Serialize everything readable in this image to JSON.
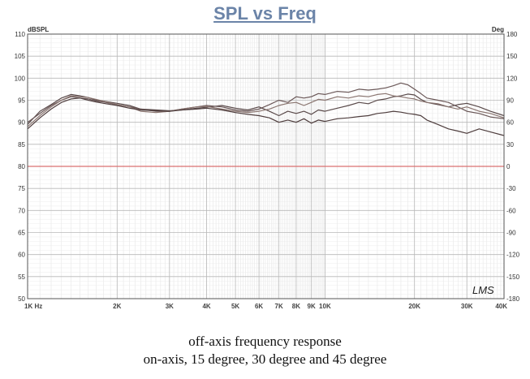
{
  "chart_data": {
    "type": "line",
    "title": "SPL vs Freq",
    "y_left_unit": "dBSPL",
    "y_right_unit": "Deg",
    "xscale": "log",
    "xlim": [
      1000,
      40000
    ],
    "ylim": [
      50,
      110
    ],
    "y_right_lim": [
      -180,
      180
    ],
    "x_ticks": [
      {
        "value": 1000,
        "label": "1K Hz"
      },
      {
        "value": 2000,
        "label": "2K"
      },
      {
        "value": 3000,
        "label": "3K"
      },
      {
        "value": 4000,
        "label": "4K"
      },
      {
        "value": 5000,
        "label": "5K"
      },
      {
        "value": 6000,
        "label": "6K"
      },
      {
        "value": 7000,
        "label": "7K"
      },
      {
        "value": 8000,
        "label": "8K"
      },
      {
        "value": 9000,
        "label": "9K"
      },
      {
        "value": 10000,
        "label": "10K"
      },
      {
        "value": 20000,
        "label": "20K"
      },
      {
        "value": 30000,
        "label": "30K"
      },
      {
        "value": 40000,
        "label": "40K"
      }
    ],
    "y_left_ticks": [
      "110",
      "105",
      "100",
      "95",
      "90",
      "85",
      "80",
      "75",
      "70",
      "65",
      "60",
      "55",
      "50"
    ],
    "y_right_ticks": [
      "180",
      "150",
      "120",
      "90",
      "60",
      "30",
      "0",
      "-30",
      "-60",
      "-90",
      "-120",
      "-150",
      "-180"
    ],
    "grid": true,
    "reference_line": 80,
    "watermark": "LMS",
    "series": [
      {
        "color": "#5a4a4a",
        "x": [
          1000,
          1100,
          1200,
          1300,
          1400,
          1500,
          1600,
          1700,
          1800,
          2000,
          2200,
          2400,
          2700,
          3000,
          3300,
          3700,
          4000,
          4500,
          5000,
          5500,
          6000,
          6500,
          7000,
          7500,
          8000,
          8500,
          9000,
          9500,
          10000,
          11000,
          12000,
          13000,
          14000,
          15000,
          16000,
          17000,
          18000,
          19000,
          20000,
          21000,
          22000,
          24000,
          26000,
          28000,
          30000,
          33000,
          36000,
          40000
        ],
        "y": [
          89.5,
          92.5,
          94.0,
          95.5,
          96.3,
          96.0,
          95.6,
          95.0,
          94.8,
          94.3,
          93.8,
          93.0,
          92.8,
          92.6,
          92.8,
          93.2,
          93.4,
          93.8,
          93.2,
          92.8,
          93.5,
          92.5,
          91.5,
          92.5,
          92.0,
          92.5,
          91.8,
          92.8,
          92.5,
          93.2,
          93.8,
          94.5,
          94.2,
          95.0,
          95.3,
          95.8,
          96.0,
          96.4,
          96.2,
          95.2,
          94.5,
          94.0,
          93.5,
          94.0,
          94.3,
          93.5,
          92.5,
          91.5
        ]
      },
      {
        "color": "#6b5858",
        "x": [
          1000,
          1100,
          1200,
          1300,
          1400,
          1500,
          1600,
          1700,
          1800,
          2000,
          2200,
          2400,
          2700,
          3000,
          3300,
          3700,
          4000,
          4500,
          5000,
          5500,
          6000,
          6500,
          7000,
          7500,
          8000,
          8500,
          9000,
          9500,
          10000,
          11000,
          12000,
          13000,
          14000,
          15000,
          16000,
          17000,
          18000,
          19000,
          20000,
          21000,
          22000,
          24000,
          26000,
          28000,
          30000,
          33000,
          36000,
          40000
        ],
        "y": [
          90.0,
          92.0,
          93.8,
          95.0,
          95.8,
          95.5,
          95.3,
          94.8,
          94.6,
          94.0,
          93.5,
          93.0,
          92.5,
          92.5,
          93.0,
          93.5,
          93.8,
          93.5,
          92.8,
          92.5,
          93.0,
          94.0,
          95.0,
          94.5,
          95.8,
          95.5,
          95.8,
          96.5,
          96.3,
          97.0,
          96.8,
          97.5,
          97.3,
          97.5,
          97.8,
          98.3,
          98.9,
          98.5,
          97.5,
          96.5,
          95.5,
          95.0,
          94.5,
          93.5,
          92.5,
          92.0,
          91.2,
          90.8
        ]
      },
      {
        "color": "#8a7570",
        "x": [
          1000,
          1100,
          1200,
          1300,
          1400,
          1500,
          1600,
          1700,
          1800,
          2000,
          2200,
          2400,
          2700,
          3000,
          3300,
          3700,
          4000,
          4500,
          5000,
          5500,
          6000,
          6500,
          7000,
          7500,
          8000,
          8500,
          9000,
          9500,
          10000,
          11000,
          12000,
          13000,
          14000,
          15000,
          16000,
          17000,
          18000,
          19000,
          20000,
          21000,
          22000,
          24000,
          26000,
          28000,
          30000,
          33000,
          36000,
          40000
        ],
        "y": [
          89.0,
          91.5,
          93.5,
          95.0,
          96.0,
          95.8,
          95.6,
          95.2,
          94.8,
          94.0,
          93.5,
          92.5,
          92.2,
          92.5,
          93.0,
          93.5,
          93.6,
          93.0,
          92.5,
          92.2,
          92.5,
          93.0,
          93.8,
          94.3,
          94.5,
          93.8,
          94.5,
          95.2,
          95.0,
          95.8,
          95.5,
          96.0,
          95.8,
          96.3,
          96.5,
          96.0,
          95.8,
          95.5,
          95.3,
          94.8,
          94.5,
          94.2,
          93.5,
          93.0,
          93.5,
          92.5,
          92.0,
          91.0
        ]
      },
      {
        "color": "#4e3d3d",
        "x": [
          1000,
          1100,
          1200,
          1300,
          1400,
          1500,
          1600,
          1700,
          1800,
          2000,
          2200,
          2400,
          2700,
          3000,
          3300,
          3700,
          4000,
          4500,
          5000,
          5500,
          6000,
          6500,
          7000,
          7500,
          8000,
          8500,
          9000,
          9500,
          10000,
          11000,
          12000,
          13000,
          14000,
          15000,
          16000,
          17000,
          18000,
          19000,
          20000,
          21000,
          22000,
          24000,
          26000,
          28000,
          30000,
          33000,
          36000,
          40000
        ],
        "y": [
          88.5,
          91.0,
          93.0,
          94.5,
          95.3,
          95.5,
          95.0,
          94.6,
          94.3,
          93.8,
          93.2,
          92.8,
          92.6,
          92.5,
          92.8,
          93.0,
          93.2,
          92.8,
          92.2,
          91.8,
          91.5,
          91.0,
          90.0,
          90.5,
          90.0,
          90.8,
          89.8,
          90.5,
          90.2,
          90.8,
          91.0,
          91.3,
          91.5,
          92.0,
          92.2,
          92.5,
          92.3,
          92.0,
          91.8,
          91.5,
          90.5,
          89.5,
          88.5,
          88.0,
          87.5,
          88.5,
          87.8,
          87.0
        ]
      }
    ]
  },
  "caption": {
    "line1": "off-axis frequency response",
    "line2": "on-axis, 15 degree, 30 degree and 45 degree"
  }
}
